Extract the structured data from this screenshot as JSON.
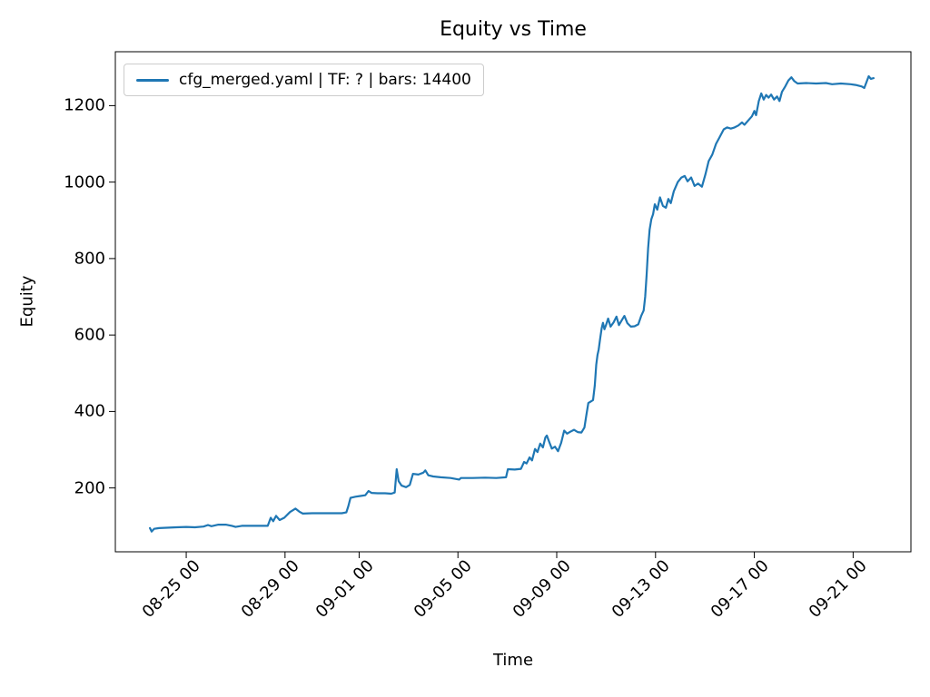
{
  "chart_data": {
    "type": "line",
    "title": "Equity vs Time",
    "xlabel": "Time",
    "ylabel": "Equity",
    "grid": false,
    "colors": {
      "line": "#1f77b4",
      "spine": "#000000",
      "legend_border": "#cccccc",
      "background": "#ffffff"
    },
    "legend": {
      "position": "upper left",
      "entries": [
        {
          "label": "cfg_merged.yaml | TF: ? | bars: 14400",
          "color": "#1f77b4"
        }
      ]
    },
    "x_axis": {
      "lim": [
        22.13,
        54.34
      ],
      "tick_values": [
        25,
        29,
        32,
        36,
        40,
        44,
        48,
        52
      ],
      "tick_labels": [
        "08-25 00",
        "08-29 00",
        "09-01 00",
        "09-05 00",
        "09-09 00",
        "09-13 00",
        "09-17 00",
        "09-21 00"
      ],
      "tick_rotation_deg": 45
    },
    "y_axis": {
      "lim": [
        33,
        1341
      ],
      "tick_values": [
        200,
        400,
        600,
        800,
        1000,
        1200
      ],
      "tick_labels": [
        "200",
        "400",
        "600",
        "800",
        "1000",
        "1200"
      ]
    },
    "series": [
      {
        "name": "cfg_merged.yaml | TF: ? | bars: 14400",
        "color": "#1f77b4",
        "points": [
          [
            23.53,
            95
          ],
          [
            23.6,
            86
          ],
          [
            23.7,
            93
          ],
          [
            23.9,
            95
          ],
          [
            24.2,
            96
          ],
          [
            24.6,
            97
          ],
          [
            25.0,
            98
          ],
          [
            25.35,
            97
          ],
          [
            25.7,
            99
          ],
          [
            25.88,
            103
          ],
          [
            26.02,
            100
          ],
          [
            26.3,
            104
          ],
          [
            26.6,
            104
          ],
          [
            26.85,
            101
          ],
          [
            27.0,
            98
          ],
          [
            27.25,
            101
          ],
          [
            27.7,
            101
          ],
          [
            28.3,
            101
          ],
          [
            28.42,
            122
          ],
          [
            28.52,
            113
          ],
          [
            28.64,
            127
          ],
          [
            28.78,
            116
          ],
          [
            28.97,
            122
          ],
          [
            29.2,
            137
          ],
          [
            29.42,
            146
          ],
          [
            29.58,
            138
          ],
          [
            29.72,
            133
          ],
          [
            30.1,
            134
          ],
          [
            30.7,
            134
          ],
          [
            31.3,
            134
          ],
          [
            31.48,
            136
          ],
          [
            31.56,
            152
          ],
          [
            31.65,
            174
          ],
          [
            31.85,
            177
          ],
          [
            32.05,
            179
          ],
          [
            32.25,
            181
          ],
          [
            32.38,
            192
          ],
          [
            32.5,
            187
          ],
          [
            32.75,
            186
          ],
          [
            33.05,
            186
          ],
          [
            33.3,
            185
          ],
          [
            33.44,
            188
          ],
          [
            33.52,
            249
          ],
          [
            33.6,
            218
          ],
          [
            33.72,
            206
          ],
          [
            33.9,
            202
          ],
          [
            34.05,
            208
          ],
          [
            34.18,
            237
          ],
          [
            34.4,
            235
          ],
          [
            34.6,
            240
          ],
          [
            34.68,
            246
          ],
          [
            34.8,
            233
          ],
          [
            35.0,
            230
          ],
          [
            35.3,
            228
          ],
          [
            35.7,
            226
          ],
          [
            36.05,
            222
          ],
          [
            36.12,
            226
          ],
          [
            36.6,
            226
          ],
          [
            37.1,
            227
          ],
          [
            37.55,
            226
          ],
          [
            37.95,
            228
          ],
          [
            38.02,
            249
          ],
          [
            38.3,
            248
          ],
          [
            38.55,
            250
          ],
          [
            38.68,
            268
          ],
          [
            38.78,
            264
          ],
          [
            38.9,
            280
          ],
          [
            39.0,
            272
          ],
          [
            39.12,
            302
          ],
          [
            39.22,
            294
          ],
          [
            39.33,
            316
          ],
          [
            39.44,
            306
          ],
          [
            39.54,
            332
          ],
          [
            39.6,
            337
          ],
          [
            39.7,
            320
          ],
          [
            39.8,
            303
          ],
          [
            39.93,
            308
          ],
          [
            40.05,
            296
          ],
          [
            40.18,
            318
          ],
          [
            40.3,
            350
          ],
          [
            40.42,
            342
          ],
          [
            40.55,
            347
          ],
          [
            40.7,
            352
          ],
          [
            40.85,
            346
          ],
          [
            41.0,
            345
          ],
          [
            41.12,
            358
          ],
          [
            41.2,
            390
          ],
          [
            41.28,
            422
          ],
          [
            41.38,
            426
          ],
          [
            41.47,
            430
          ],
          [
            41.54,
            468
          ],
          [
            41.6,
            522
          ],
          [
            41.65,
            548
          ],
          [
            41.7,
            562
          ],
          [
            41.76,
            592
          ],
          [
            41.82,
            618
          ],
          [
            41.87,
            632
          ],
          [
            41.93,
            615
          ],
          [
            42.0,
            627
          ],
          [
            42.08,
            643
          ],
          [
            42.18,
            622
          ],
          [
            42.3,
            633
          ],
          [
            42.42,
            648
          ],
          [
            42.52,
            626
          ],
          [
            42.63,
            638
          ],
          [
            42.74,
            650
          ],
          [
            42.86,
            631
          ],
          [
            43.0,
            622
          ],
          [
            43.15,
            623
          ],
          [
            43.3,
            628
          ],
          [
            43.42,
            650
          ],
          [
            43.52,
            664
          ],
          [
            43.58,
            700
          ],
          [
            43.64,
            758
          ],
          [
            43.7,
            826
          ],
          [
            43.76,
            876
          ],
          [
            43.83,
            903
          ],
          [
            43.9,
            916
          ],
          [
            43.97,
            942
          ],
          [
            44.07,
            928
          ],
          [
            44.18,
            960
          ],
          [
            44.3,
            938
          ],
          [
            44.42,
            933
          ],
          [
            44.52,
            956
          ],
          [
            44.62,
            945
          ],
          [
            44.74,
            976
          ],
          [
            44.9,
            1000
          ],
          [
            45.05,
            1012
          ],
          [
            45.18,
            1016
          ],
          [
            45.3,
            1002
          ],
          [
            45.44,
            1012
          ],
          [
            45.58,
            990
          ],
          [
            45.72,
            996
          ],
          [
            45.88,
            988
          ],
          [
            46.02,
            1020
          ],
          [
            46.15,
            1055
          ],
          [
            46.3,
            1072
          ],
          [
            46.45,
            1100
          ],
          [
            46.6,
            1118
          ],
          [
            46.76,
            1138
          ],
          [
            46.9,
            1143
          ],
          [
            47.05,
            1140
          ],
          [
            47.2,
            1143
          ],
          [
            47.35,
            1148
          ],
          [
            47.5,
            1156
          ],
          [
            47.6,
            1150
          ],
          [
            47.75,
            1161
          ],
          [
            47.9,
            1172
          ],
          [
            48.0,
            1186
          ],
          [
            48.07,
            1175
          ],
          [
            48.18,
            1212
          ],
          [
            48.28,
            1232
          ],
          [
            48.38,
            1216
          ],
          [
            48.48,
            1228
          ],
          [
            48.58,
            1221
          ],
          [
            48.68,
            1229
          ],
          [
            48.8,
            1216
          ],
          [
            48.92,
            1224
          ],
          [
            49.02,
            1212
          ],
          [
            49.12,
            1236
          ],
          [
            49.25,
            1250
          ],
          [
            49.38,
            1266
          ],
          [
            49.5,
            1274
          ],
          [
            49.62,
            1264
          ],
          [
            49.75,
            1258
          ],
          [
            50.1,
            1259
          ],
          [
            50.5,
            1258
          ],
          [
            50.9,
            1259
          ],
          [
            51.15,
            1256
          ],
          [
            51.5,
            1258
          ],
          [
            51.9,
            1256
          ],
          [
            52.1,
            1254
          ],
          [
            52.35,
            1250
          ],
          [
            52.45,
            1246
          ],
          [
            52.55,
            1263
          ],
          [
            52.63,
            1277
          ],
          [
            52.72,
            1270
          ],
          [
            52.83,
            1272
          ]
        ]
      }
    ]
  }
}
